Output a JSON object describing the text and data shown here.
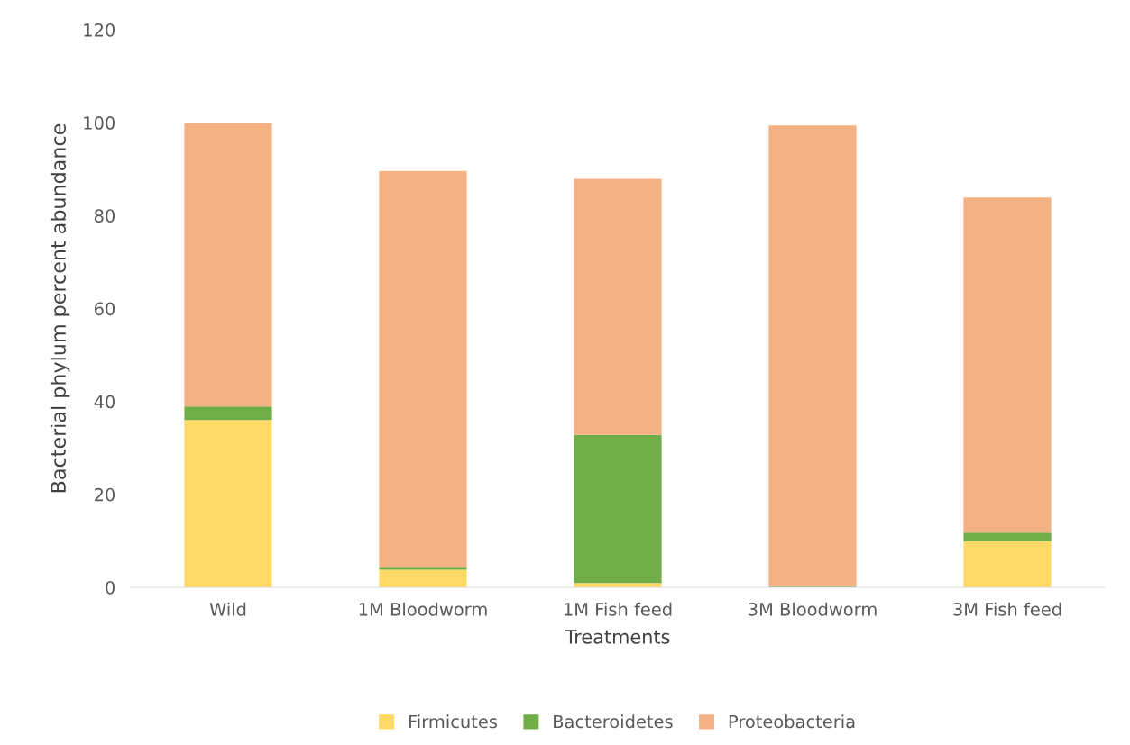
{
  "chart_data": {
    "type": "bar",
    "stacked": true,
    "xlabel": "Treatments",
    "ylabel": "Bacterial phylum percent abundance",
    "categories": [
      "Wild",
      "1M Bloodworm",
      "1M Fish feed",
      "3M Bloodworm",
      "3M Fish feed"
    ],
    "series": [
      {
        "name": "Firmicutes",
        "color": "#ffd966",
        "values": [
          36,
          3.8,
          0.9,
          0,
          9.9
        ]
      },
      {
        "name": "Bacteroidetes",
        "color": "#70ad47",
        "values": [
          2.9,
          0.6,
          31.9,
          0.3,
          1.9
        ]
      },
      {
        "name": "Proteobacteria",
        "color": "#f4b183",
        "values": [
          61.1,
          85.2,
          55.1,
          99.1,
          72.1
        ]
      }
    ],
    "ylim": [
      0,
      120
    ],
    "yticks": [
      0,
      20,
      40,
      60,
      80,
      100,
      120
    ],
    "grid": false,
    "legend": "bottom"
  }
}
